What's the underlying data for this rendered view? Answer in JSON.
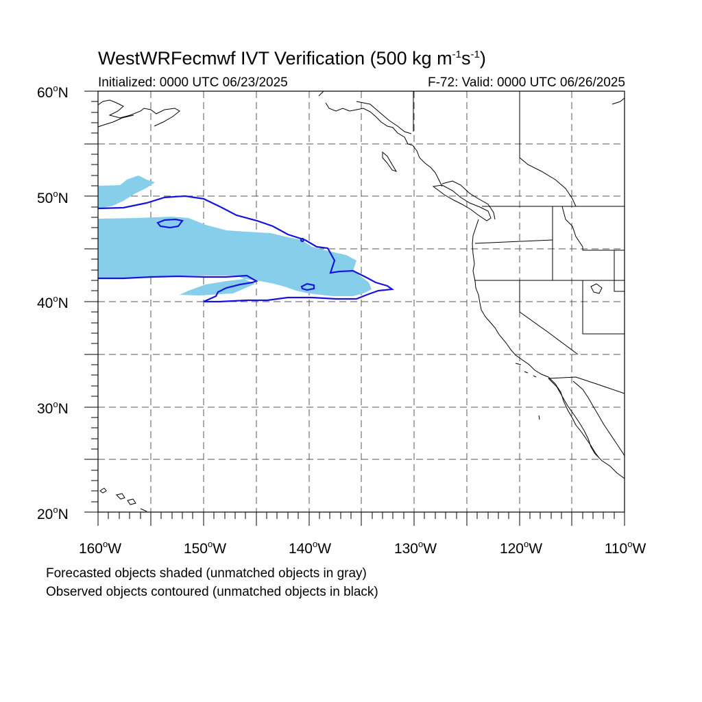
{
  "title": {
    "main_prefix": "WestWRFecmwf IVT Verification (500 kg m",
    "exp1": "-1",
    "mid": "s",
    "exp2": "-1",
    "suffix": ")"
  },
  "subtitle": {
    "initialized": "Initialized: 0000 UTC 06/23/2025",
    "valid": "F-72: Valid: 0000 UTC 06/26/2025"
  },
  "axes": {
    "lon_range": [
      -160,
      -110
    ],
    "lat_range": [
      20,
      60
    ],
    "x_ticks": [
      {
        "value": "160",
        "hemi": "W"
      },
      {
        "value": "150",
        "hemi": "W"
      },
      {
        "value": "140",
        "hemi": "W"
      },
      {
        "value": "130",
        "hemi": "W"
      },
      {
        "value": "120",
        "hemi": "W"
      },
      {
        "value": "110",
        "hemi": "W"
      }
    ],
    "y_ticks": [
      {
        "value": "60",
        "hemi": "N"
      },
      {
        "value": "50",
        "hemi": "N"
      },
      {
        "value": "40",
        "hemi": "N"
      },
      {
        "value": "30",
        "hemi": "N"
      },
      {
        "value": "20",
        "hemi": "N"
      }
    ],
    "grid_interval_deg": 5,
    "grid_style": "dashed"
  },
  "colors": {
    "forecast_fill": "#87ceeb",
    "observed_contour": "#1414dc",
    "coastline": "#000000",
    "grid": "#555555"
  },
  "legend": {
    "line1": "Forecasted objects shaded (unmatched objects in gray)",
    "line2": "Observed objects contoured (unmatched objects in black)"
  }
}
